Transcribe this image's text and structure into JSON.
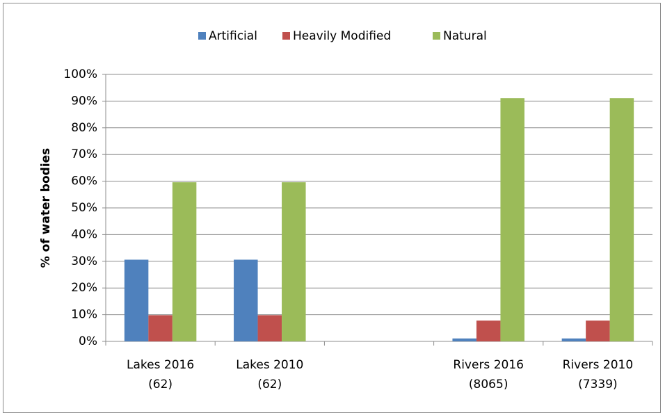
{
  "chart_data": {
    "type": "bar",
    "y_label": "% of water bodies",
    "categories": [
      "Lakes 2016\n(62)",
      "Lakes 2010\n(62)",
      null,
      "Rivers 2016\n(8065)",
      "Rivers 2010\n(7339)"
    ],
    "series": [
      {
        "name": "Artificial",
        "color": "#4f81bd",
        "values": [
          30.6,
          30.6,
          null,
          1.1,
          1.1
        ]
      },
      {
        "name": "Heavily Modified",
        "color": "#c0504d",
        "values": [
          9.8,
          9.8,
          null,
          7.8,
          7.8
        ]
      },
      {
        "name": "Natural",
        "color": "#9bbb59",
        "values": [
          59.6,
          59.6,
          null,
          91.1,
          91.1
        ]
      }
    ],
    "ylim": [
      0,
      100
    ],
    "yticks": [
      {
        "value": 0,
        "label": "0%"
      },
      {
        "value": 10,
        "label": "10%"
      },
      {
        "value": 20,
        "label": "20%"
      },
      {
        "value": 30,
        "label": "30%"
      },
      {
        "value": 40,
        "label": "40%"
      },
      {
        "value": 50,
        "label": "50%"
      },
      {
        "value": 60,
        "label": "60%"
      },
      {
        "value": 70,
        "label": "70%"
      },
      {
        "value": 80,
        "label": "80%"
      },
      {
        "value": 90,
        "label": "90%"
      },
      {
        "value": 100,
        "label": "100%"
      }
    ],
    "grid": true,
    "legend": "top"
  }
}
